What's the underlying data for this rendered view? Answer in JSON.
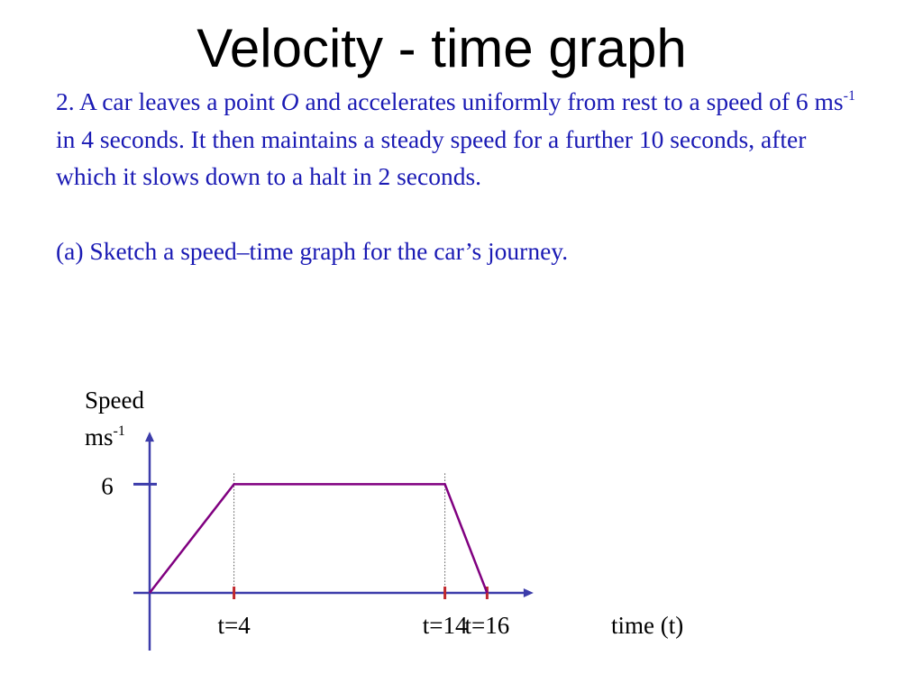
{
  "slide": {
    "title": "Velocity - time graph",
    "question": {
      "lead": "2. A car leaves a point ",
      "point": "O",
      "after_point": " and accelerates uniformly from rest to a speed of 6 ms",
      "sup": "-1",
      "rest": " in 4 seconds. It then maintains a steady speed for a further 10 seconds, after which it slows down to a halt in 2 seconds."
    },
    "part_a": "(a) Sketch a speed–time graph for the car’s journey."
  },
  "chart_data": {
    "type": "line",
    "x": [
      0,
      4,
      14,
      16
    ],
    "y": [
      0,
      6,
      6,
      0
    ],
    "xticks": [
      {
        "value": 4,
        "label": "t=4"
      },
      {
        "value": 14,
        "label": "t=14"
      },
      {
        "value": 16,
        "label": "t=16"
      }
    ],
    "yticks": [
      {
        "value": 6,
        "label": "6"
      }
    ],
    "ylabel": {
      "line1": "Speed",
      "unit": "ms",
      "sup": "-1"
    },
    "xlabel": "time  (t)",
    "xlim": [
      0,
      18.2
    ],
    "ylim": [
      0,
      8.9
    ],
    "colors": {
      "axes": "#3c3caa",
      "line": "#800080",
      "xtick": "#c0282d",
      "ytick": "#3c3caa",
      "guide": "#555555"
    },
    "guides": "dotted vertical lines at x=4 and x=14"
  }
}
